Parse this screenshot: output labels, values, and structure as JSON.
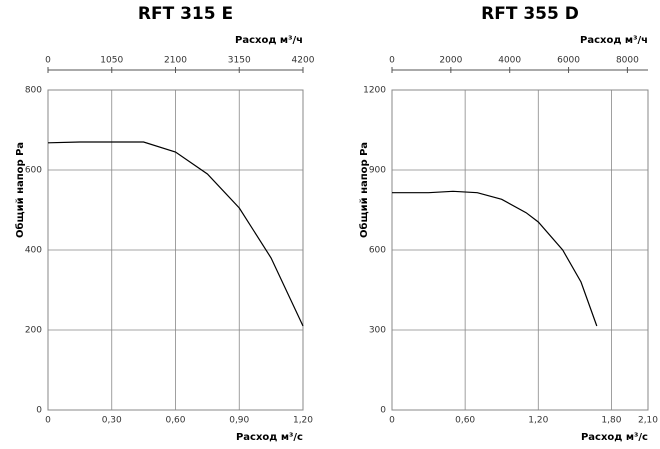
{
  "chart_data": [
    {
      "type": "line",
      "title": "RFT 315 E",
      "xlabel": "Расход м³/с",
      "x2label": "Расход м³/ч",
      "ylabel": "Общий напор Pa",
      "x": [
        0,
        0.15,
        0.3,
        0.45,
        0.6,
        0.75,
        0.9,
        1.05,
        1.2
      ],
      "values": [
        668,
        670,
        670,
        670,
        645,
        590,
        505,
        380,
        210
      ],
      "color": "#000000",
      "xlim": [
        0,
        1.2
      ],
      "xticks": [
        0,
        {
          "value": 0.3,
          "label": "0,30"
        },
        {
          "value": 0.6,
          "label": "0,60"
        },
        {
          "value": 0.9,
          "label": "0,90"
        },
        {
          "value": 1.2,
          "label": "1,20"
        }
      ],
      "x2lim": [
        0,
        4200
      ],
      "x2ticks": [
        0,
        1050,
        2100,
        3150,
        4200
      ],
      "ylim": [
        0,
        800
      ],
      "yticks": [
        0,
        200,
        400,
        600,
        800
      ],
      "grid": true
    },
    {
      "type": "line",
      "title": "RFT 355 D",
      "xlabel": "Расход м³/с",
      "x2label": "Расход м³/ч",
      "ylabel": "Общий напор Pa",
      "x": [
        0,
        0.3,
        0.5,
        0.7,
        0.9,
        1.1,
        1.2,
        1.4,
        1.55,
        1.68
      ],
      "values": [
        815,
        815,
        820,
        815,
        790,
        740,
        705,
        600,
        480,
        315
      ],
      "color": "#000000",
      "xlim": [
        0,
        2.1
      ],
      "xticks": [
        0,
        {
          "value": 0.6,
          "label": "0,60"
        },
        {
          "value": 1.2,
          "label": "1,20"
        },
        {
          "value": 1.8,
          "label": "1,80"
        },
        {
          "value": 2.1,
          "label": "2,10"
        }
      ],
      "x2lim": [
        0,
        8700
      ],
      "x2ticks": [
        0,
        2000,
        4000,
        6000,
        8000
      ],
      "ylim": [
        0,
        1200
      ],
      "yticks": [
        0,
        300,
        600,
        900,
        1200
      ],
      "grid": true
    }
  ]
}
